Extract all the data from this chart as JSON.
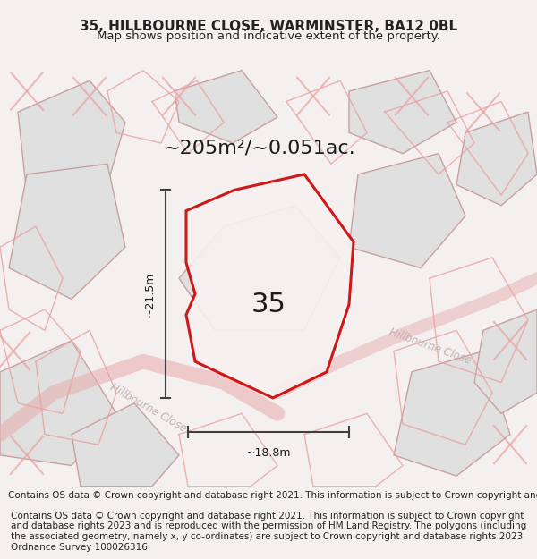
{
  "title": "35, HILLBOURNE CLOSE, WARMINSTER, BA12 0BL",
  "subtitle": "Map shows position and indicative extent of the property.",
  "area_text": "~205m²/~0.051ac.",
  "label_35": "35",
  "dim_width": "~18.8m",
  "dim_height": "~21.5m",
  "footer": "Contains OS data © Crown copyright and database right 2021. This information is subject to Crown copyright and database rights 2023 and is reproduced with the permission of HM Land Registry. The polygons (including the associated geometry, namely x, y co-ordinates) are subject to Crown copyright and database rights 2023 Ordnance Survey 100026316.",
  "background_color": "#f5f0f0",
  "map_background": "#f5f0f0",
  "plot_outline_color": "#cc0000",
  "building_fill": "#e0e0e0",
  "building_outline": "#c8a0a0",
  "road_color": "#d0b0b0",
  "dim_line_color": "#404040",
  "street_label_color": "#b0b0b0",
  "title_fontsize": 11,
  "subtitle_fontsize": 9.5,
  "area_fontsize": 16,
  "label_fontsize": 22,
  "footer_fontsize": 7.5,
  "figsize": [
    6.0,
    6.25
  ],
  "dpi": 100
}
